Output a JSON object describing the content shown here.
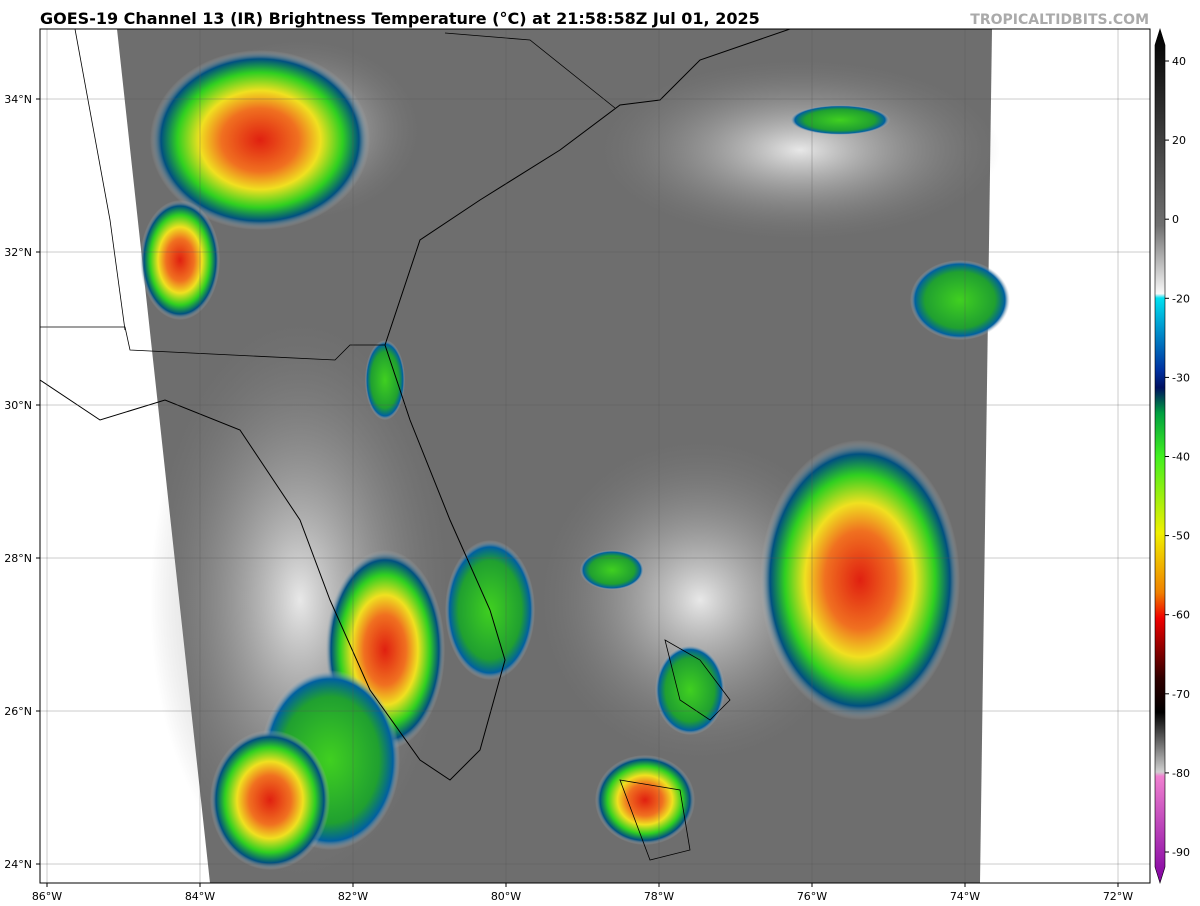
{
  "title": "GOES-19 Channel 13 (IR) Brightness Temperature (°C) at 21:58:58Z Jul 01, 2025",
  "source": "TROPICALTIDBITS.COM",
  "map": {
    "lat_labels": [
      "34°N",
      "32°N",
      "30°N",
      "28°N",
      "26°N",
      "24°N"
    ],
    "lon_labels": [
      "86°W",
      "84°W",
      "82°W",
      "80°W",
      "78°W",
      "76°W",
      "74°W",
      "72°W"
    ]
  },
  "colorbar": {
    "ticks": [
      40,
      20,
      0,
      -20,
      -30,
      -40,
      -50,
      -60,
      -70,
      -80,
      -90
    ]
  }
}
